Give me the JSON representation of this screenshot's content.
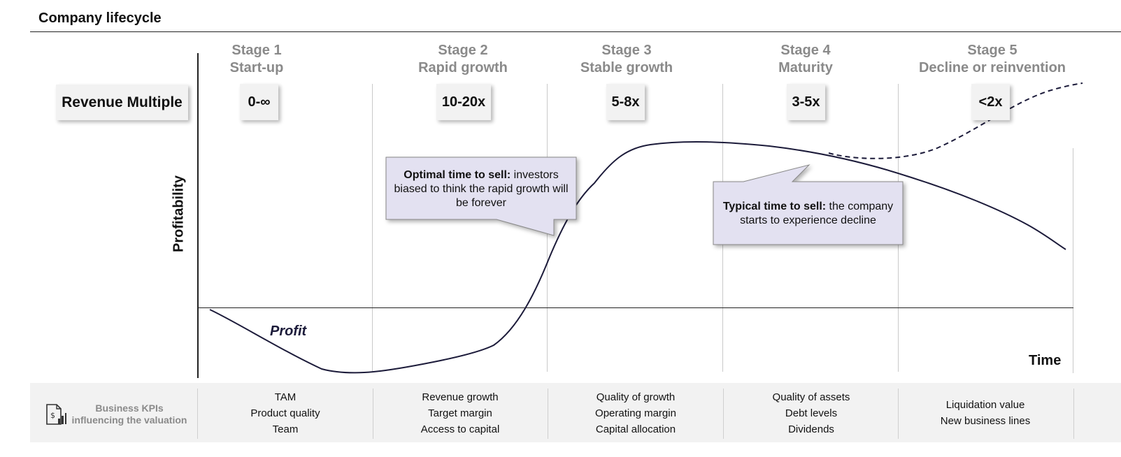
{
  "title": "Company lifecycle",
  "stages": [
    {
      "number": "Stage 1",
      "name": "Start-up",
      "multiple": "0-∞",
      "kpis": [
        "TAM",
        "Product quality",
        "Team"
      ]
    },
    {
      "number": "Stage 2",
      "name": "Rapid growth",
      "multiple": "10-20x",
      "kpis": [
        "Revenue growth",
        "Target margin",
        "Access to capital"
      ]
    },
    {
      "number": "Stage 3",
      "name": "Stable growth",
      "multiple": "5-8x",
      "kpis": [
        "Quality of growth",
        "Operating margin",
        "Capital allocation"
      ]
    },
    {
      "number": "Stage 4",
      "name": "Maturity",
      "multiple": "3-5x",
      "kpis": [
        "Quality of assets",
        "Debt levels",
        "Dividends"
      ]
    },
    {
      "number": "Stage 5",
      "name": "Decline or reinvention",
      "multiple": "<2x",
      "kpis": [
        "Liquidation value",
        "New business lines"
      ]
    }
  ],
  "revenue_multiple_label": "Revenue Multiple",
  "y_axis_label": "Profitability",
  "x_axis_label": "Time",
  "curve_label": "Profit",
  "callouts": {
    "optimal": {
      "bold": "Optimal time to sell:",
      "text": " investors biased to think the rapid growth will be forever"
    },
    "typical": {
      "bold": "Typical time to sell:",
      "text": " the company starts to experience decline"
    }
  },
  "kpi_section_label": "Business KPIs influencing the valuation",
  "colors": {
    "curve": "#1c1b3a",
    "callout_fill": "#e3e1f1",
    "stage_text": "#8a8a8a",
    "box_fill": "#f2f2f2",
    "band_fill": "#f2f2f2"
  }
}
